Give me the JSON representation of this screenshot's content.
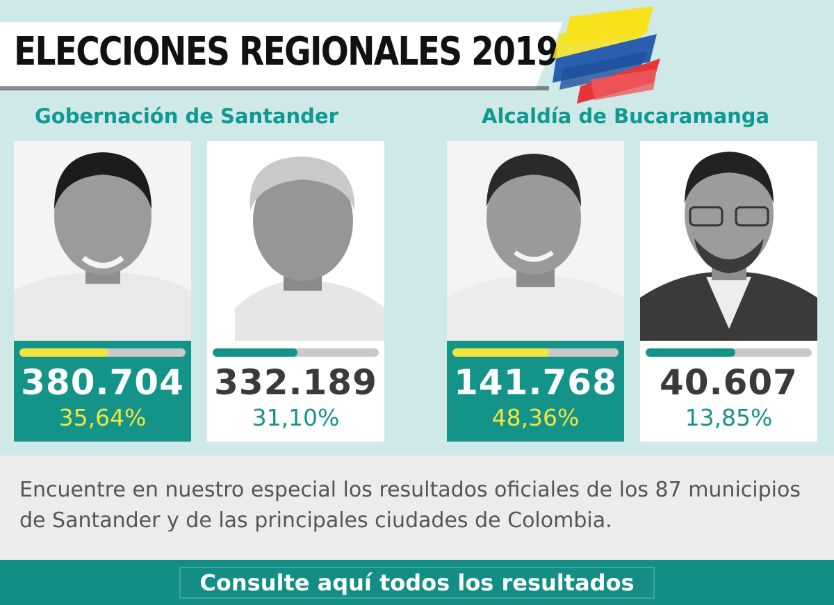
{
  "header": {
    "title": "ELECCIONES REGIONALES 2019",
    "flag_colors": [
      "#f7e21b",
      "#2a5fb0",
      "#e4353b"
    ]
  },
  "races": [
    {
      "title": "Gobernación de Santander",
      "candidates": [
        {
          "votes": "380.704",
          "percent": "35,64%",
          "bar_fill": 0.5364,
          "winner": true
        },
        {
          "votes": "332.189",
          "percent": "31,10%",
          "bar_fill": 0.511,
          "winner": false
        }
      ]
    },
    {
      "title": "Alcaldía de Bucaramanga",
      "candidates": [
        {
          "votes": "141.768",
          "percent": "48,36%",
          "bar_fill": 0.5836,
          "winner": true
        },
        {
          "votes": "40.607",
          "percent": "13,85%",
          "bar_fill": 0.5385,
          "winner": false
        }
      ]
    }
  ],
  "info": {
    "text": "Encuentre en nuestro especial los resultados oficiales de los 87 municipios de Santander y de las principales ciudades de Colombia."
  },
  "cta": {
    "label": "Consulte aquí todos los resultados"
  },
  "colors": {
    "accent": "#149389",
    "winner_bar": "#f2e53d",
    "loser_bar": "#149389",
    "bar_track": "#c9c9c9"
  }
}
